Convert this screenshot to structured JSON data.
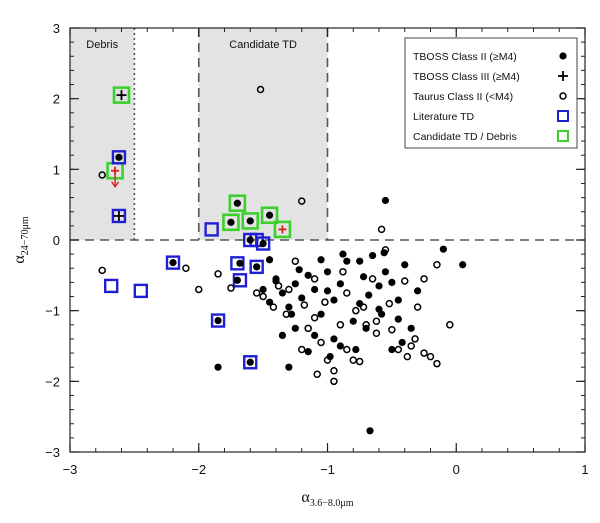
{
  "chart_data": {
    "type": "scatter",
    "xlabel_main": "α",
    "xlabel_sub": "3.6−8.0μm",
    "ylabel_main": "α",
    "ylabel_sub": "24−70μm",
    "xlim": [
      -3,
      1
    ],
    "ylim": [
      -3,
      3
    ],
    "xticks": [
      -3,
      -2,
      -1,
      0,
      1
    ],
    "xtick_labels": [
      "−3",
      "−2",
      "−1",
      "0",
      "1"
    ],
    "yticks": [
      -3,
      -2,
      -1,
      0,
      1,
      2,
      3
    ],
    "ytick_labels": [
      "−3",
      "−2",
      "−1",
      "0",
      "1",
      "2",
      "3"
    ],
    "regions": [
      {
        "name": "Debris",
        "label": "Debris",
        "x_range": [
          -3,
          -2.5
        ],
        "y_range": [
          0,
          3
        ]
      },
      {
        "name": "Candidate TD",
        "label": "Candidate TD",
        "x_range": [
          -2,
          -1
        ],
        "y_range": [
          0,
          3
        ]
      }
    ],
    "reference_lines": {
      "horizontal_y": 0,
      "vertical_dotted_x": -2.5,
      "vertical_dashed_x": [
        -2,
        -1
      ]
    },
    "legend": [
      {
        "label": "TBOSS Class II (≥M4)",
        "symbol": "filled-circle",
        "color": "#000000"
      },
      {
        "label": "TBOSS Class III (≥M4)",
        "symbol": "plus",
        "color": "#000000"
      },
      {
        "label": "Taurus Class II (<M4)",
        "symbol": "open-circle",
        "color": "#000000"
      },
      {
        "label": "Literature TD",
        "symbol": "square",
        "color": "#1f1fd6"
      },
      {
        "label": "Candidate TD / Debris",
        "symbol": "square",
        "color": "#3bd12c"
      }
    ],
    "colors": {
      "background": "#ffffff",
      "shade": "#e3e3e3",
      "literature_td": "#1f1fd6",
      "candidate_td": "#3bd12c",
      "upper_limit": "#d42020",
      "points": "#000000"
    },
    "series": [
      {
        "name": "TBOSS Class II (≥M4)",
        "marker": "filled-circle",
        "points": [
          [
            -2.62,
            1.17
          ],
          [
            -1.7,
            0.52
          ],
          [
            -1.75,
            0.25
          ],
          [
            -1.6,
            0.27
          ],
          [
            -1.45,
            0.35
          ],
          [
            -2.2,
            -0.32
          ],
          [
            -1.85,
            -1.14
          ],
          [
            -1.6,
            -1.73
          ],
          [
            -1.7,
            -0.57
          ],
          [
            -1.68,
            -0.33
          ],
          [
            -1.6,
            0.0
          ],
          [
            -1.5,
            -0.05
          ],
          [
            -1.55,
            -0.38
          ],
          [
            -1.45,
            -0.28
          ],
          [
            -1.5,
            -0.7
          ],
          [
            -1.45,
            -0.88
          ],
          [
            -1.4,
            -0.55
          ],
          [
            -1.35,
            -0.75
          ],
          [
            -1.3,
            -0.95
          ],
          [
            -1.25,
            -0.62
          ],
          [
            -1.2,
            -0.82
          ],
          [
            -1.15,
            -0.5
          ],
          [
            -1.1,
            -0.7
          ],
          [
            -1.05,
            -1.05
          ],
          [
            -1.0,
            -0.45
          ],
          [
            -0.95,
            -0.85
          ],
          [
            -0.9,
            -0.62
          ],
          [
            -0.85,
            -0.3
          ],
          [
            -0.8,
            -1.15
          ],
          [
            -0.75,
            -0.9
          ],
          [
            -0.72,
            -0.52
          ],
          [
            -0.68,
            -0.78
          ],
          [
            -0.65,
            -0.22
          ],
          [
            -0.6,
            -0.98
          ],
          [
            -0.56,
            -0.18
          ],
          [
            -0.55,
            -0.45
          ],
          [
            -0.5,
            -0.6
          ],
          [
            -0.45,
            -0.85
          ],
          [
            -0.4,
            -0.35
          ],
          [
            -0.35,
            -1.25
          ],
          [
            -0.3,
            -0.72
          ],
          [
            -0.55,
            0.56
          ],
          [
            -0.1,
            -0.13
          ],
          [
            0.05,
            -0.35
          ],
          [
            -1.3,
            -1.8
          ],
          [
            -1.85,
            -1.8
          ],
          [
            -0.67,
            -2.7
          ],
          [
            -1.1,
            -1.35
          ],
          [
            -0.9,
            -1.5
          ],
          [
            -1.35,
            -1.35
          ],
          [
            -1.25,
            -1.25
          ],
          [
            -0.5,
            -1.55
          ],
          [
            -0.6,
            -0.65
          ],
          [
            -1.0,
            -0.72
          ],
          [
            -1.22,
            -0.42
          ],
          [
            -0.42,
            -1.45
          ],
          [
            -0.75,
            -0.3
          ],
          [
            -0.95,
            -1.4
          ],
          [
            -1.05,
            -0.28
          ],
          [
            -0.58,
            -1.05
          ],
          [
            -0.98,
            -1.65
          ],
          [
            -0.78,
            -1.55
          ],
          [
            -1.4,
            -0.58
          ],
          [
            -0.7,
            -1.25
          ],
          [
            -1.15,
            -1.58
          ],
          [
            -1.28,
            -1.05
          ],
          [
            -0.88,
            -0.2
          ],
          [
            -0.45,
            -1.12
          ]
        ]
      },
      {
        "name": "TBOSS Class III (≥M4)",
        "marker": "plus",
        "points": [
          [
            -2.6,
            2.05
          ],
          [
            -2.62,
            0.34
          ],
          [
            -1.35,
            0.15
          ],
          [
            -2.65,
            0.98
          ]
        ]
      },
      {
        "name": "Taurus Class II (<M4)",
        "marker": "open-circle",
        "points": [
          [
            -2.75,
            0.92
          ],
          [
            -2.75,
            -0.43
          ],
          [
            -2.1,
            -0.4
          ],
          [
            -2.0,
            -0.7
          ],
          [
            -1.85,
            -0.48
          ],
          [
            -1.5,
            -0.8
          ],
          [
            -1.42,
            -0.95
          ],
          [
            -1.38,
            -0.65
          ],
          [
            -1.18,
            -0.92
          ],
          [
            -1.1,
            -0.55
          ],
          [
            -1.02,
            -0.88
          ],
          [
            -0.9,
            -1.2
          ],
          [
            -0.85,
            -1.55
          ],
          [
            -0.8,
            -1.7
          ],
          [
            -0.75,
            -1.72
          ],
          [
            -0.7,
            -1.2
          ],
          [
            -0.62,
            -1.32
          ],
          [
            -0.5,
            -1.27
          ],
          [
            -0.45,
            -1.55
          ],
          [
            -0.35,
            -1.5
          ],
          [
            -0.32,
            -1.4
          ],
          [
            -0.3,
            -0.95
          ],
          [
            -0.25,
            -1.6
          ],
          [
            -0.2,
            -1.65
          ],
          [
            -0.15,
            -1.75
          ],
          [
            -0.05,
            -1.2
          ],
          [
            -0.25,
            -0.55
          ],
          [
            -0.15,
            -0.35
          ],
          [
            -0.58,
            0.15
          ],
          [
            -0.55,
            -0.14
          ],
          [
            -0.95,
            -1.85
          ],
          [
            -1.0,
            -1.7
          ],
          [
            -1.05,
            -1.45
          ],
          [
            -1.1,
            -1.1
          ],
          [
            -1.2,
            -1.55
          ],
          [
            -1.55,
            -0.75
          ],
          [
            -1.75,
            -0.68
          ],
          [
            -0.85,
            -0.75
          ],
          [
            -0.95,
            -2.0
          ],
          [
            -0.65,
            -0.55
          ],
          [
            -1.52,
            2.13
          ],
          [
            -1.2,
            0.55
          ],
          [
            -1.3,
            -0.7
          ],
          [
            -0.78,
            -1.0
          ],
          [
            -1.08,
            -1.9
          ],
          [
            -0.72,
            -0.95
          ],
          [
            -0.52,
            -0.9
          ],
          [
            -0.38,
            -1.65
          ],
          [
            -1.15,
            -1.25
          ],
          [
            -1.32,
            -1.05
          ],
          [
            -0.88,
            -0.45
          ],
          [
            -1.25,
            -0.3
          ],
          [
            -0.4,
            -0.58
          ],
          [
            -0.62,
            -1.15
          ]
        ]
      },
      {
        "name": "Literature TD",
        "marker": "blue-square",
        "points": [
          [
            -2.62,
            1.17
          ],
          [
            -2.62,
            0.34
          ],
          [
            -1.9,
            0.15
          ],
          [
            -1.6,
            0.0
          ],
          [
            -1.55,
            0.0
          ],
          [
            -1.5,
            -0.05
          ],
          [
            -1.7,
            -0.33
          ],
          [
            -1.68,
            -0.57
          ],
          [
            -1.55,
            -0.38
          ],
          [
            -2.2,
            -0.32
          ],
          [
            -2.45,
            -0.72
          ],
          [
            -2.68,
            -0.65
          ],
          [
            -1.85,
            -1.14
          ],
          [
            -1.6,
            -1.73
          ]
        ]
      },
      {
        "name": "Candidate TD / Debris",
        "marker": "green-square",
        "points": [
          [
            -2.6,
            2.05
          ],
          [
            -2.65,
            0.98
          ],
          [
            -1.7,
            0.52
          ],
          [
            -1.75,
            0.25
          ],
          [
            -1.6,
            0.27
          ],
          [
            -1.45,
            0.35
          ],
          [
            -1.35,
            0.15
          ]
        ]
      },
      {
        "name": "Upper limit",
        "marker": "down-arrow",
        "points": [
          [
            -2.65,
            0.98
          ]
        ]
      }
    ]
  }
}
